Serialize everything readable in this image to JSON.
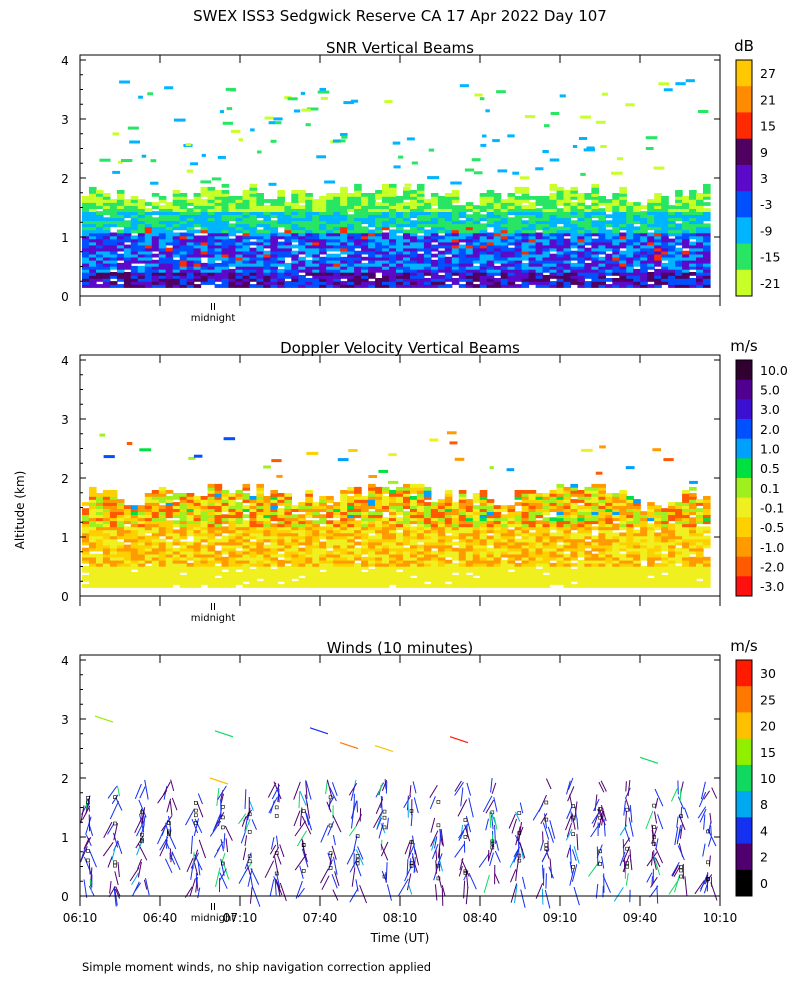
{
  "page": {
    "title": "SWEX ISS3 Sedgwick Reserve CA  17 Apr 2022 Day 107",
    "footer": "Simple moment winds, no ship navigation correction applied",
    "midnight_label": "midnight",
    "altitude_label": "Altitude (km)",
    "time_label": "Time (UT)"
  },
  "x_axis": {
    "tick_labels": [
      "06:10",
      "06:40",
      "07:10",
      "07:40",
      "08:10",
      "08:40",
      "09:10",
      "09:40",
      "10:10"
    ],
    "range_hours": [
      6.1667,
      10.1667
    ]
  },
  "chart_data": [
    {
      "type": "heatmap",
      "title": "SNR Vertical Beams",
      "ylabel": "Altitude (km)",
      "ylim": [
        0,
        4
      ],
      "y_ticks": [
        "0",
        "1",
        "2",
        "3",
        "4"
      ],
      "colorbar": {
        "unit": "dB",
        "labels": [
          "27",
          "21",
          "15",
          "9",
          "3",
          "-3",
          "-9",
          "-15",
          "-21"
        ],
        "colors": [
          "#ffc800",
          "#ff8c00",
          "#ff2a00",
          "#500060",
          "#5a0ac8",
          "#0050ff",
          "#00b4ff",
          "#28e664",
          "#c8ff28"
        ]
      }
    },
    {
      "type": "heatmap",
      "title": "Doppler Velocity Vertical Beams",
      "ylabel": "Altitude (km)",
      "ylim": [
        0,
        4
      ],
      "y_ticks": [
        "0",
        "1",
        "2",
        "3",
        "4"
      ],
      "colorbar": {
        "unit": "m/s",
        "labels": [
          "10.0",
          "5.0",
          "3.0",
          "2.0",
          "1.0",
          "0.5",
          "0.1",
          "-0.1",
          "-0.5",
          "-1.0",
          "-2.0",
          "-3.0"
        ],
        "colors": [
          "#300030",
          "#500090",
          "#3c10d0",
          "#0050ff",
          "#00a0ff",
          "#00e040",
          "#a0f020",
          "#f0f020",
          "#ffd000",
          "#ff9a00",
          "#ff5a00",
          "#ff1010"
        ]
      }
    },
    {
      "type": "scatter",
      "title": "Winds (10 minutes)",
      "ylabel": "Altitude (km)",
      "xlabel": "Time (UT)",
      "ylim": [
        0,
        4
      ],
      "y_ticks": [
        "0",
        "1",
        "2",
        "3",
        "4"
      ],
      "colorbar": {
        "unit": "m/s",
        "labels": [
          "30",
          "25",
          "20",
          "15",
          "10",
          "8",
          "4",
          "2",
          "0"
        ],
        "colors": [
          "#ff1a00",
          "#ff7800",
          "#ffc000",
          "#90f000",
          "#10d860",
          "#00a8f0",
          "#1430f0",
          "#50006e",
          "#000000"
        ]
      }
    }
  ]
}
